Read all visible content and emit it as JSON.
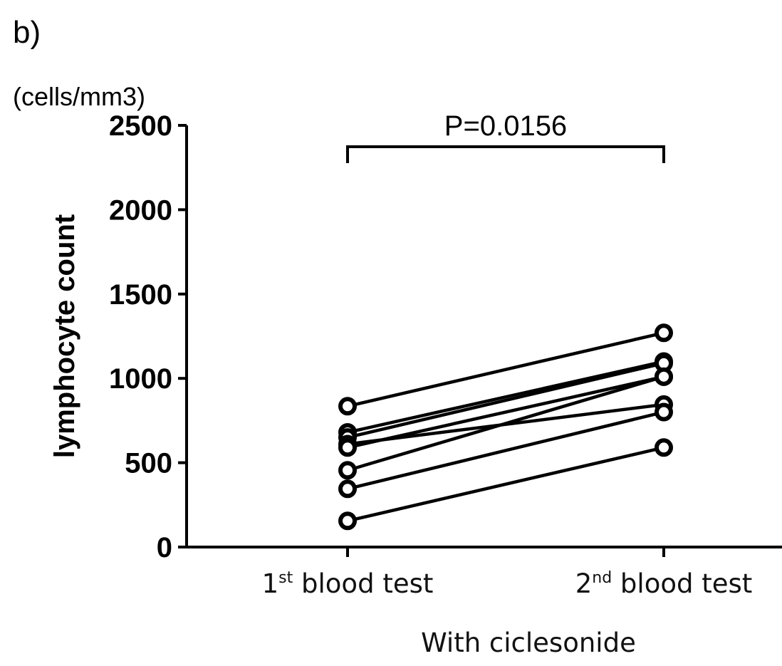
{
  "panel_label": "b)",
  "unit_label": "(cells/mm3)",
  "chart_data": {
    "type": "line",
    "title": "",
    "ylabel": "lymphocyte count",
    "xlabel": "With ciclesonide",
    "ylim": [
      0,
      2500
    ],
    "yticks": [
      "0",
      "500",
      "1000",
      "1500",
      "2000",
      "2500"
    ],
    "categories": [
      {
        "base": "1",
        "sup": "st",
        "rest": " blood test"
      },
      {
        "base": "2",
        "sup": "nd",
        "rest": " blood test"
      }
    ],
    "pairs": [
      [
        835,
        1270
      ],
      [
        680,
        1100
      ],
      [
        650,
        1090
      ],
      [
        610,
        845
      ],
      [
        590,
        1010
      ],
      [
        455,
        1010
      ],
      [
        345,
        800
      ],
      [
        155,
        590
      ]
    ],
    "annotation": "P=0.0156",
    "grid": false,
    "legend": "none"
  }
}
